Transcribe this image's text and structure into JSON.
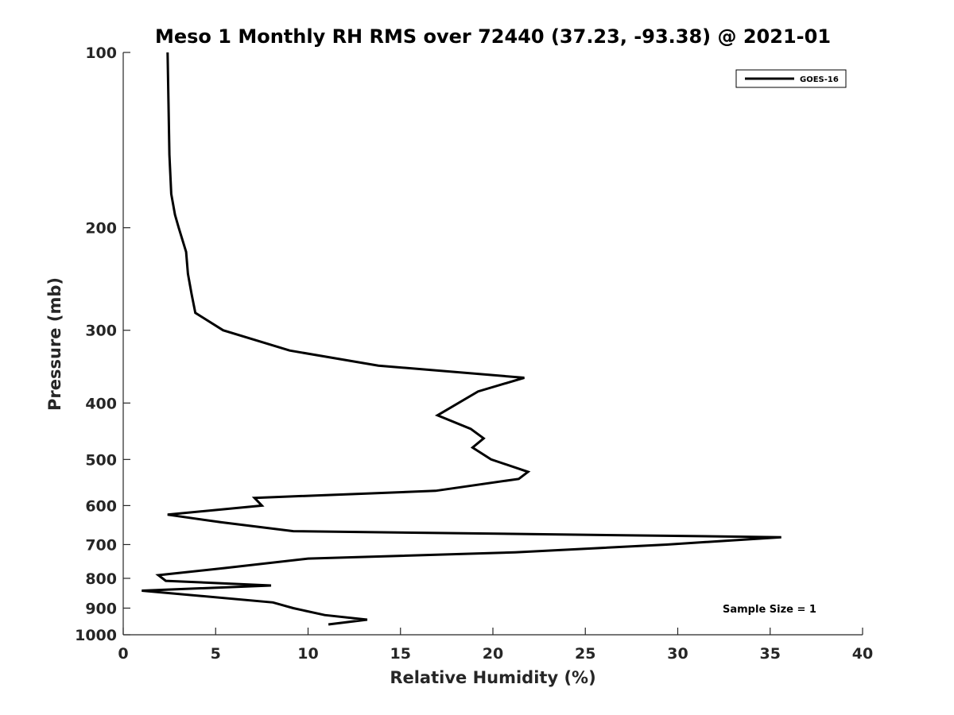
{
  "chart_data": {
    "type": "line",
    "title": "Meso 1 Monthly RH RMS over 72440 (37.23, -93.38) @ 2021-01",
    "xlabel": "Relative Humidity (%)",
    "ylabel": "Pressure (mb)",
    "xlim": [
      0,
      40
    ],
    "ylim": [
      100,
      1000
    ],
    "y_scale": "log",
    "y_reversed": true,
    "grid": false,
    "legend_position": "top-right",
    "x_ticks": [
      "0",
      "5",
      "10",
      "15",
      "20",
      "25",
      "30",
      "35",
      "40"
    ],
    "y_ticks": [
      "100",
      "200",
      "300",
      "400",
      "500",
      "600",
      "700",
      "800",
      "900",
      "1000"
    ],
    "annotation": "Sample Size = 1",
    "series": [
      {
        "name": "GOES-16",
        "color": "#000000",
        "points": [
          [
            2.4,
            100
          ],
          [
            2.5,
            150
          ],
          [
            2.6,
            175
          ],
          [
            2.8,
            190
          ],
          [
            3.0,
            200
          ],
          [
            3.4,
            220
          ],
          [
            3.5,
            240
          ],
          [
            3.7,
            260
          ],
          [
            3.9,
            280
          ],
          [
            5.4,
            300
          ],
          [
            9.0,
            325
          ],
          [
            13.8,
            345
          ],
          [
            21.7,
            362
          ],
          [
            19.2,
            382
          ],
          [
            17.0,
            420
          ],
          [
            18.8,
            443
          ],
          [
            19.5,
            460
          ],
          [
            18.9,
            477
          ],
          [
            19.9,
            500
          ],
          [
            21.9,
            525
          ],
          [
            21.4,
            540
          ],
          [
            16.9,
            566
          ],
          [
            7.1,
            582
          ],
          [
            7.5,
            600
          ],
          [
            2.4,
            622
          ],
          [
            5.3,
            641
          ],
          [
            9.2,
            664
          ],
          [
            35.6,
            680
          ],
          [
            29.4,
            700
          ],
          [
            21.2,
            722
          ],
          [
            10.0,
            740
          ],
          [
            5.5,
            768
          ],
          [
            1.9,
            790
          ],
          [
            2.3,
            808
          ],
          [
            8.0,
            823
          ],
          [
            1.0,
            840
          ],
          [
            8.1,
            880
          ],
          [
            9.2,
            900
          ],
          [
            10.9,
            925
          ],
          [
            13.2,
            942
          ],
          [
            11.1,
            960
          ]
        ]
      }
    ]
  }
}
